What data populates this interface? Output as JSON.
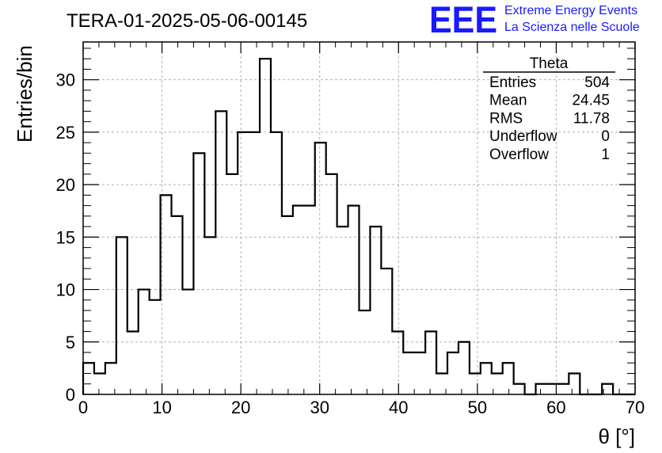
{
  "plot_title": "TERA-01-2025-05-06-00145",
  "logo": {
    "mark": "EEE",
    "line1": "Extreme Energy Events",
    "line2": "La Scienza nelle Scuole",
    "color": "#1a1aff"
  },
  "stats_box": {
    "name": "Theta",
    "rows": [
      {
        "label": "Entries",
        "value": "504"
      },
      {
        "label": "Mean",
        "value": "24.45"
      },
      {
        "label": "RMS",
        "value": "11.78"
      },
      {
        "label": "Underflow",
        "value": "0"
      },
      {
        "label": "Overflow",
        "value": "1"
      }
    ]
  },
  "chart_data": {
    "type": "bar",
    "style": "step-histogram",
    "xlabel": "θ [°]",
    "ylabel": "Entries/bin",
    "xlim": [
      0,
      70
    ],
    "ylim": [
      0,
      33.6
    ],
    "bin_width": 1.4,
    "grid": true,
    "x_ticks": [
      "0",
      "10",
      "20",
      "30",
      "40",
      "50",
      "60",
      "70"
    ],
    "y_ticks": [
      "0",
      "5",
      "10",
      "15",
      "20",
      "25",
      "30"
    ],
    "values": [
      3,
      2,
      3,
      15,
      6,
      10,
      9,
      19,
      17,
      10,
      23,
      15,
      27,
      21,
      25,
      25,
      32,
      25,
      17,
      18,
      18,
      24,
      21,
      16,
      18,
      8,
      16,
      12,
      6,
      4,
      4,
      6,
      2,
      4,
      5,
      2,
      3,
      2,
      3,
      1,
      0,
      1,
      1,
      1,
      2,
      0,
      0,
      1,
      0,
      0
    ],
    "line_color": "#000000",
    "grid_color": "#b0b0b0"
  }
}
